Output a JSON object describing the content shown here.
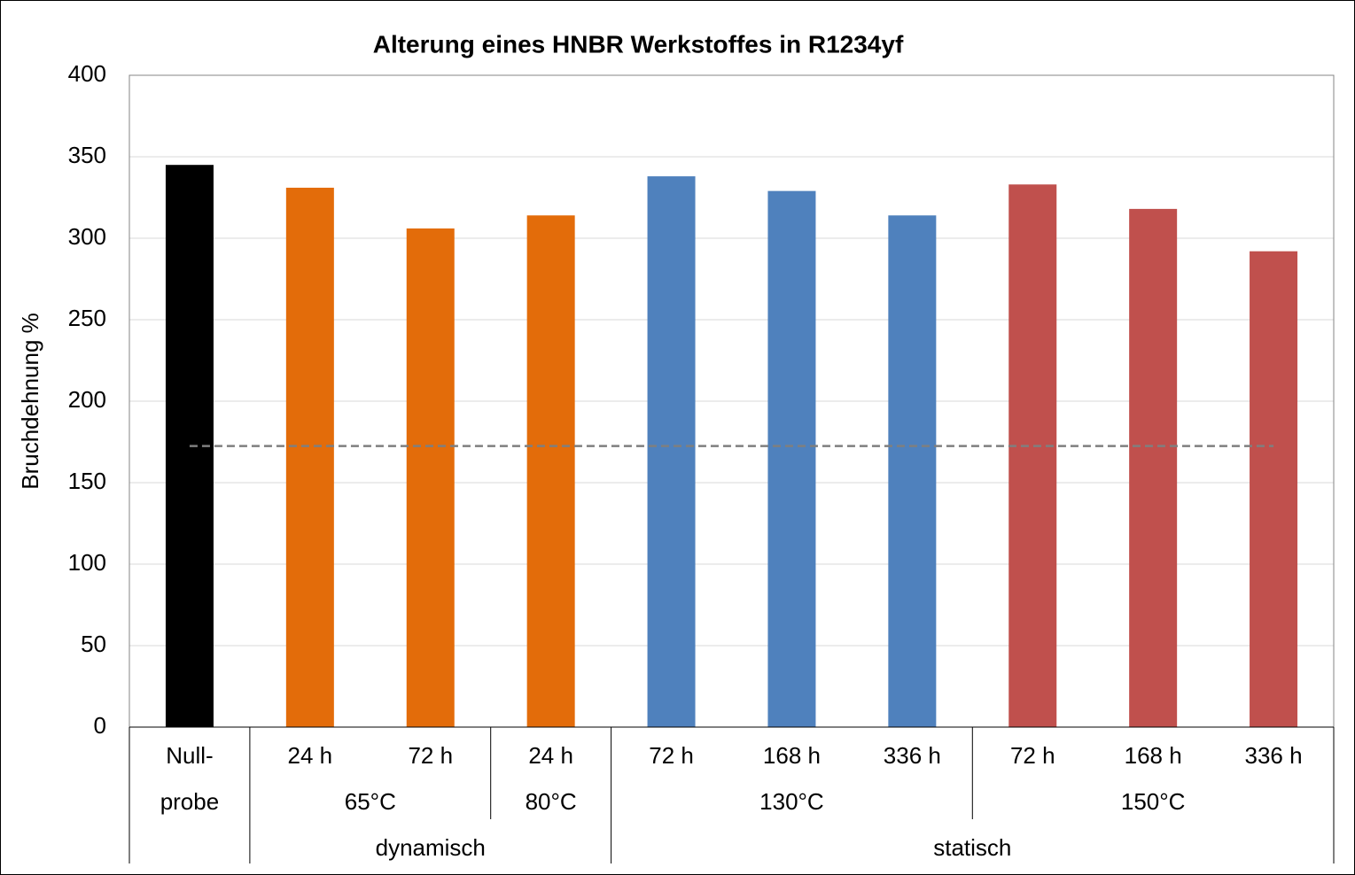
{
  "chart_data": {
    "type": "bar",
    "title": "Alterung eines HNBR Werkstoffes  in R1234yf",
    "y_label": "Bruchdehnung  %",
    "ylim": [
      0,
      400
    ],
    "yticks": [
      0,
      50,
      100,
      150,
      200,
      250,
      300,
      350,
      400
    ],
    "grid": true,
    "reference_line": 172.5,
    "groups": [
      {
        "subgroups": [
          {
            "label": "probe",
            "categories": [
              "Null-"
            ],
            "values": [
              345
            ],
            "color": "#000000"
          }
        ]
      },
      {
        "label": "dynamisch",
        "subgroups": [
          {
            "label": "65°C",
            "categories": [
              "24 h",
              "72 h"
            ],
            "values": [
              331,
              306
            ],
            "color": "#e36c0a"
          },
          {
            "label": "80°C",
            "categories": [
              "24 h"
            ],
            "values": [
              314
            ],
            "color": "#e36c0a"
          }
        ]
      },
      {
        "label": "statisch",
        "subgroups": [
          {
            "label": "130°C",
            "categories": [
              "72 h",
              "168 h",
              "336 h"
            ],
            "values": [
              338,
              329,
              314
            ],
            "color": "#4f81bd"
          },
          {
            "label": "150°C",
            "categories": [
              "72 h",
              "168 h",
              "336 h"
            ],
            "values": [
              333,
              318,
              292
            ],
            "color": "#c0504d"
          }
        ]
      }
    ]
  }
}
